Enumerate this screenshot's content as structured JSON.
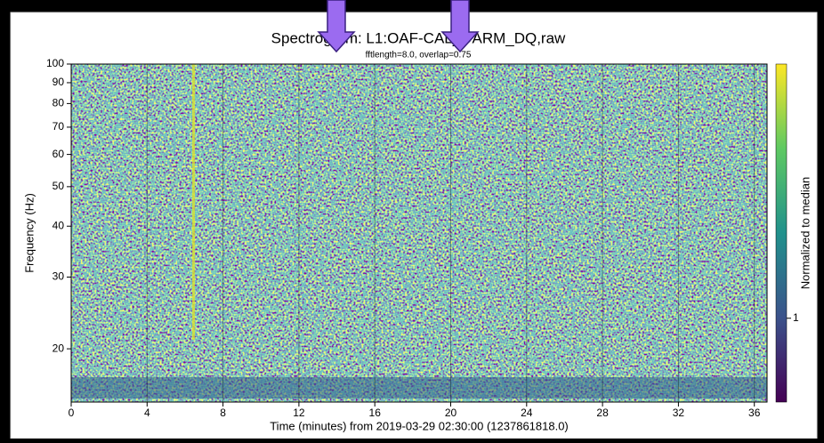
{
  "chart_data": {
    "type": "spectrogram",
    "title": "Spectrogram: L1:OAF-CAL_DARM_DQ,raw",
    "subtitle": "fftlength=8.0, overlap=0.75",
    "x_label": "Time (minutes) from 2019-03-29 02:30:00 (1237861818.0)",
    "y_label": "Frequency (Hz)",
    "xlim": [
      0,
      36.67
    ],
    "xticks": [
      0,
      4,
      8,
      12,
      16,
      20,
      24,
      28,
      32,
      36
    ],
    "ylim": [
      14.8,
      100
    ],
    "yticks": [
      20,
      30,
      40,
      50,
      60,
      70,
      80,
      90,
      100
    ],
    "y_scale": "log",
    "colorbar": {
      "label": "Normalized to median",
      "clim": [
        0.56,
        5.8
      ],
      "scale": "log",
      "ticks": [
        1
      ]
    }
  }
}
